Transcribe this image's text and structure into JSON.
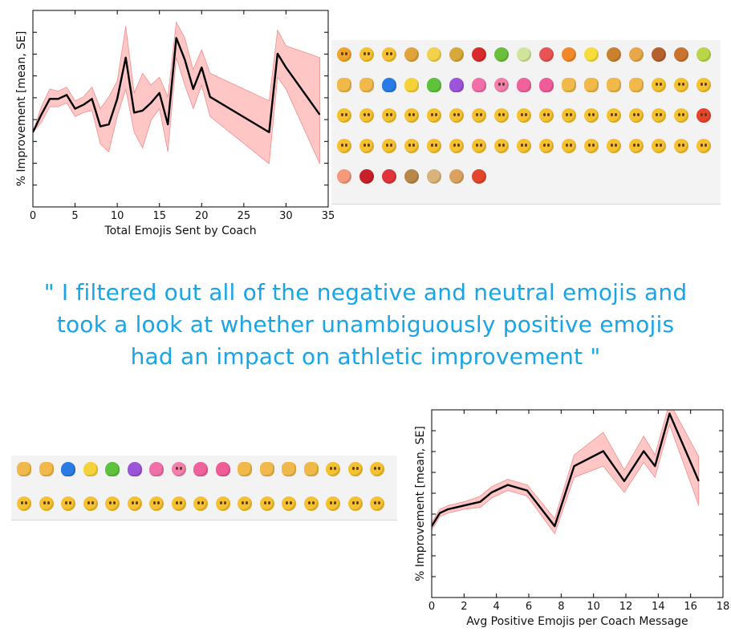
{
  "quote": {
    "line1": "\" I filtered out all of the negative and neutral emojis and",
    "line2": "took a look at whether unambiguously positive emojis",
    "line3": "had an impact on athletic improvement \""
  },
  "colors": {
    "line": "#000000",
    "band": "#ffb3b3",
    "quote": "#19a4e8",
    "panel_bg": "#f3f3f3"
  },
  "chart_data": [
    {
      "type": "line",
      "title": "",
      "xlabel": "Total Emojis Sent by Coach",
      "ylabel": "% Improvement [mean, SE]",
      "xlim": [
        0,
        35
      ],
      "xticks": [
        "0",
        "5",
        "10",
        "15",
        "20",
        "25",
        "30",
        "35"
      ],
      "ylim": [
        0,
        100
      ],
      "grid": false,
      "series": [
        {
          "x": [
            0,
            1,
            2,
            3,
            4,
            5,
            6,
            7,
            8,
            9,
            10,
            11,
            12,
            13,
            14,
            15,
            16,
            17,
            18,
            19,
            20,
            21,
            28,
            29,
            30,
            34
          ],
          "y": [
            38,
            47,
            55,
            55,
            57,
            50,
            52,
            55,
            41,
            42,
            55,
            76,
            48,
            49,
            53,
            58,
            42,
            86,
            75,
            60,
            71,
            56,
            38,
            78,
            71,
            47
          ],
          "lower": [
            38,
            43,
            51,
            51,
            53,
            46,
            48,
            49,
            32,
            28,
            46,
            60,
            38,
            30,
            44,
            50,
            28,
            76,
            62,
            50,
            62,
            46,
            22,
            66,
            60,
            22
          ],
          "upper": [
            38,
            51,
            60,
            59,
            61,
            54,
            56,
            61,
            50,
            56,
            64,
            92,
            58,
            68,
            62,
            66,
            56,
            94,
            86,
            70,
            80,
            68,
            54,
            90,
            82,
            76
          ]
        }
      ]
    },
    {
      "type": "line",
      "title": "",
      "xlabel": "Avg Positive Emojis per Coach Message",
      "ylabel": "% Improvement [mean, SE]",
      "xlim": [
        0,
        18
      ],
      "xticks": [
        "0",
        "2",
        "4",
        "6",
        "8",
        "10",
        "12",
        "14",
        "16",
        "18"
      ],
      "ylim": [
        0,
        100
      ],
      "grid": false,
      "series": [
        {
          "x": [
            0,
            0.5,
            1,
            1.5,
            2,
            3,
            3.7,
            4.7,
            5.9,
            7.6,
            8.8,
            10.6,
            11.9,
            13.1,
            13.8,
            14.7,
            16.5
          ],
          "y": [
            38,
            45,
            47,
            48,
            49,
            51,
            56,
            60,
            57,
            38,
            70,
            78,
            62,
            78,
            70,
            98,
            62
          ],
          "lower": [
            36,
            43,
            45,
            46,
            47,
            48,
            53,
            57,
            54,
            34,
            64,
            70,
            56,
            72,
            64,
            92,
            49
          ],
          "upper": [
            40,
            47,
            49,
            50,
            51,
            54,
            59,
            63,
            60,
            42,
            76,
            88,
            68,
            86,
            76,
            104,
            75
          ]
        }
      ]
    }
  ],
  "emoji_panels": [
    {
      "rows": [
        [
          "angry-face",
          "frowning-face",
          "crying-face",
          "beer-mugs",
          "banana",
          "pineapple",
          "red-apple",
          "green-apple",
          "melon",
          "watermelon",
          "tangerine",
          "lemon",
          "hamburger",
          "pizza",
          "meat-on-bone",
          "poultry-leg",
          "pear"
        ],
        [
          "raised-hands",
          "flexed-biceps",
          "blue-heart",
          "yellow-heart",
          "green-heart",
          "purple-heart",
          "two-hearts",
          "heart-with-arrow",
          "revolving-hearts",
          "growing-heart",
          "fist",
          "ok-hand",
          "thumbs-up",
          "clapping-hands",
          "grinning-face",
          "kissing-face",
          "face-blowing-kiss"
        ],
        [
          "flushed-face",
          "astonished-face",
          "screaming-face",
          "anxious-face",
          "mask-face",
          "dizzy-face",
          "sleeping-face",
          "weary-face",
          "disappointed-face",
          "tired-face",
          "fearful-face",
          "hushed-face",
          "open-mouth-face",
          "grimacing-face",
          "confounded-face",
          "sad-face",
          "pouting-face"
        ],
        [
          "squinting-tongue-face",
          "winking-tongue-face",
          "yum-face",
          "smiling-face",
          "winking-face",
          "smirking-face",
          "sunglasses-face",
          "heart-eyes-face",
          "relieved-face",
          "big-smile-face",
          "tears-of-joy-face",
          "beaming-face",
          "grin-face",
          "halo-face",
          "laughing-face",
          "sweat-smile-face",
          "grinning-face"
        ],
        [
          "peach",
          "cherries",
          "strawberry",
          "stew",
          "ramen",
          "bread",
          "fries"
        ]
      ]
    },
    {
      "rows": [
        [
          "raised-hands",
          "flexed-biceps",
          "blue-heart",
          "yellow-heart",
          "green-heart",
          "purple-heart",
          "two-hearts",
          "heart-with-arrow",
          "revolving-hearts",
          "growing-heart",
          "fist",
          "ok-hand",
          "thumbs-up",
          "clapping-hands",
          "grinning-face",
          "kissing-face",
          "face-blowing-kiss"
        ],
        [
          "squinting-tongue-face",
          "winking-tongue-face",
          "yum-face",
          "smiling-face",
          "winking-face",
          "smirking-face",
          "sunglasses-face",
          "heart-eyes-face",
          "relieved-face",
          "big-smile-face",
          "tears-of-joy-face",
          "beaming-face",
          "grin-face",
          "halo-face",
          "laughing-face",
          "sweat-smile-face",
          "grinning-face"
        ]
      ]
    }
  ]
}
